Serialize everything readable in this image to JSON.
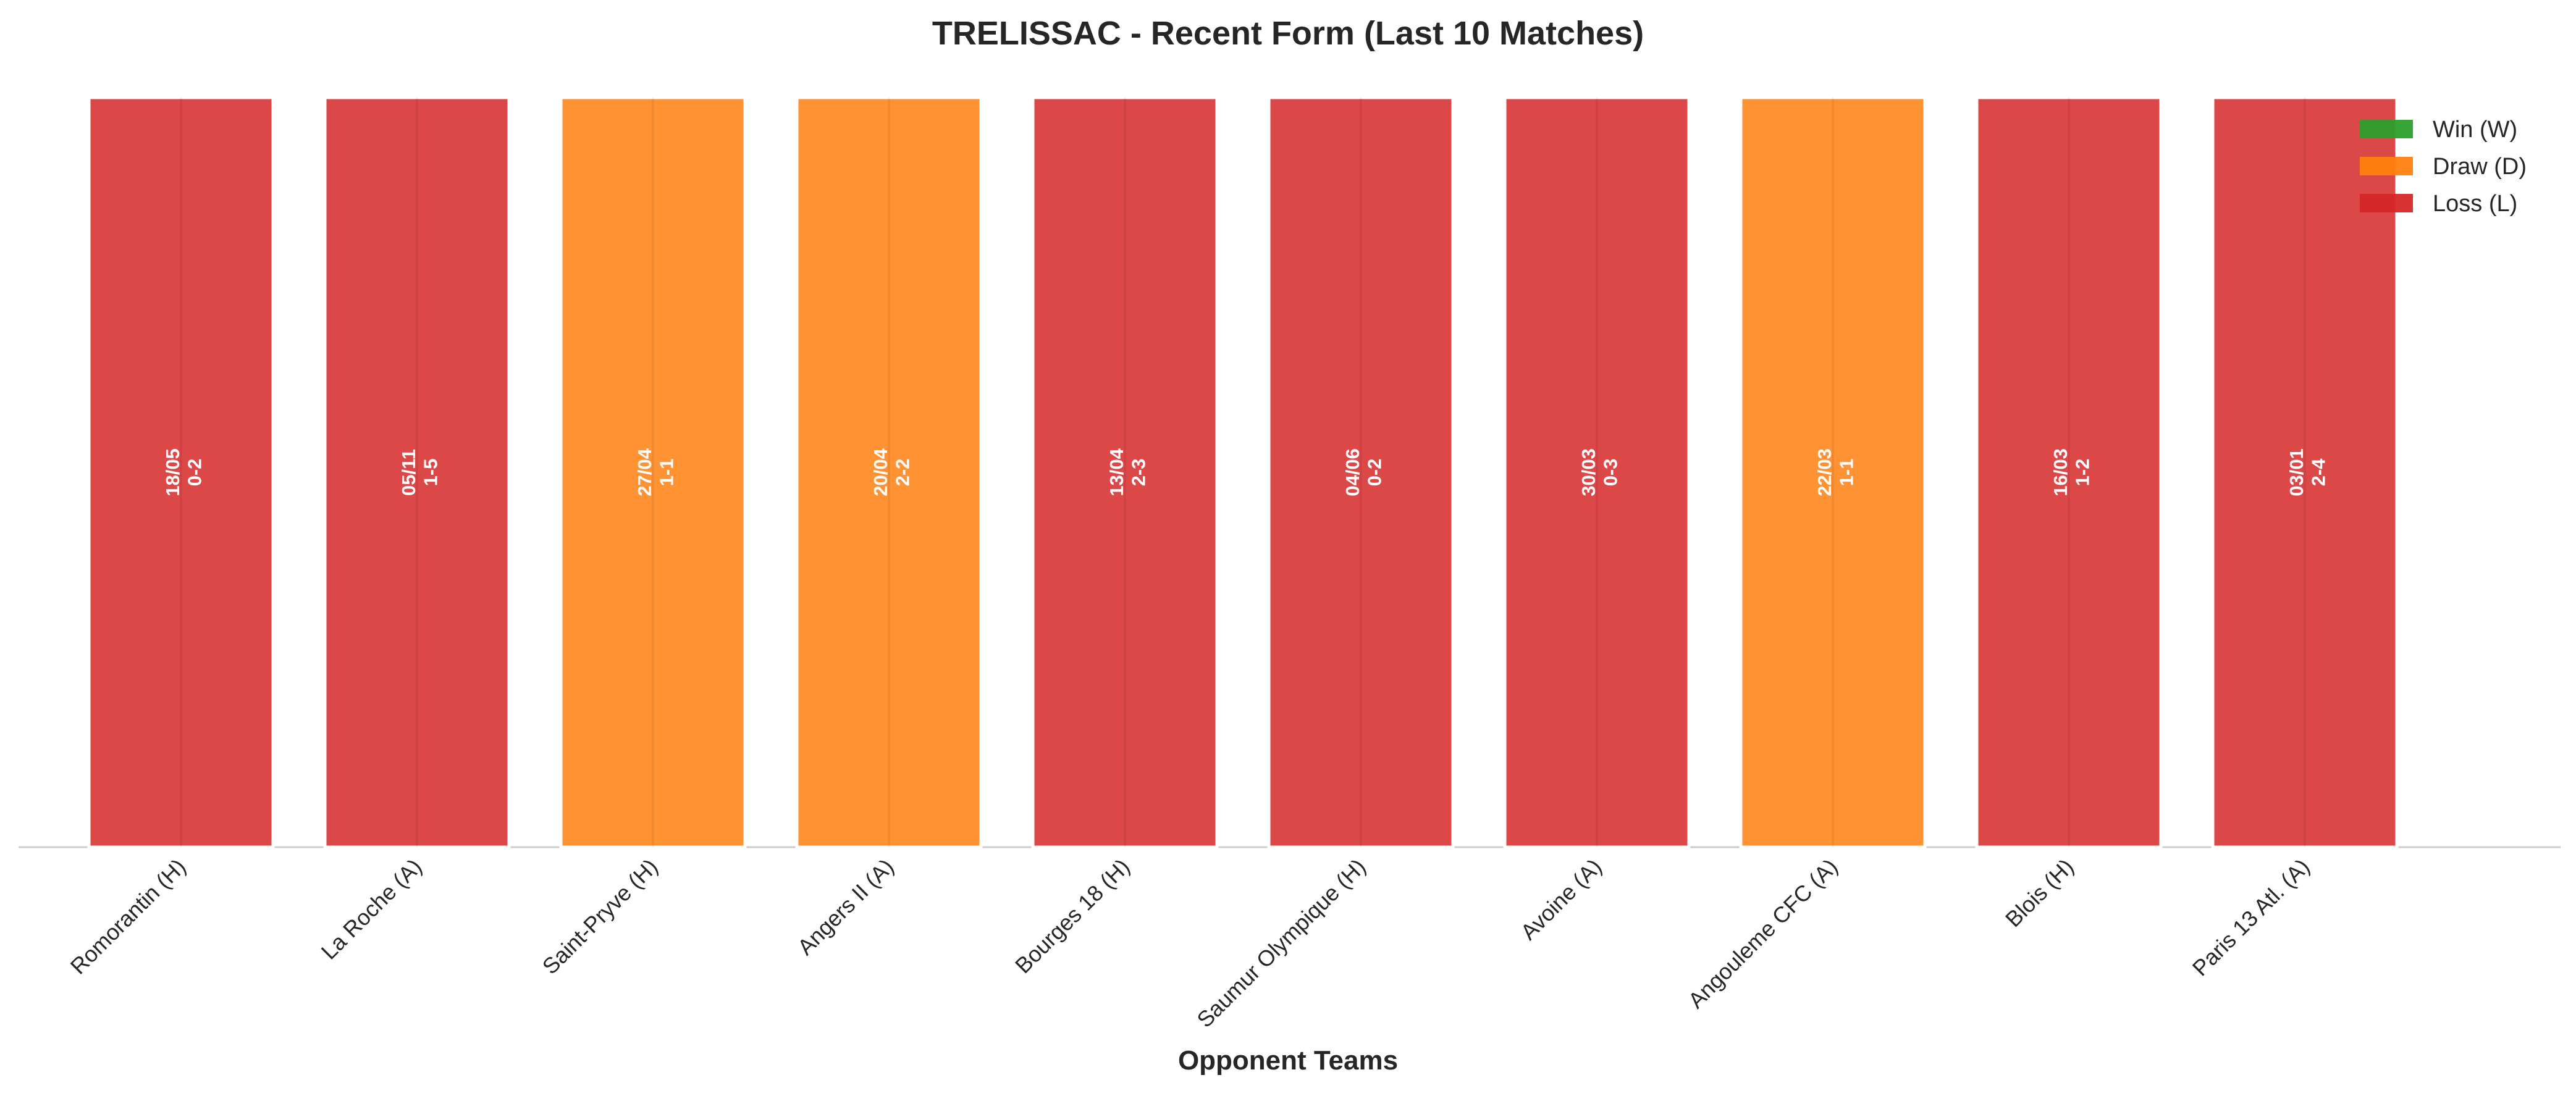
{
  "chart_data": {
    "type": "bar",
    "title": "TRELISSAC - Recent Form (Last 10 Matches)",
    "xlabel": "Opponent Teams",
    "ylabel": "",
    "ylim": [
      0,
      1
    ],
    "categories": [
      "Romorantin (H)",
      "La Roche (A)",
      "Saint-Pryve (H)",
      "Angers II (A)",
      "Bourges 18 (H)",
      "Saumur Olympique (H)",
      "Avoine (A)",
      "Angouleme CFC (A)",
      "Blois (H)",
      "Paris 13 Atl. (A)"
    ],
    "values": [
      1,
      1,
      1,
      1,
      1,
      1,
      1,
      1,
      1,
      1
    ],
    "results": [
      "L",
      "L",
      "D",
      "D",
      "L",
      "L",
      "L",
      "D",
      "L",
      "L"
    ],
    "dates": [
      "18/05",
      "05/11",
      "27/04",
      "20/04",
      "13/04",
      "04/06",
      "30/03",
      "22/03",
      "16/03",
      "03/01"
    ],
    "scores": [
      "0-2",
      "1-5",
      "1-1",
      "2-2",
      "2-3",
      "0-2",
      "0-3",
      "1-1",
      "1-2",
      "2-4"
    ],
    "legend": {
      "position": "top-right",
      "entries": [
        {
          "key": "W",
          "label": "Win (W)",
          "color": "#2ca02c"
        },
        {
          "key": "D",
          "label": "Draw (D)",
          "color": "#ff7f0e"
        },
        {
          "key": "L",
          "label": "Loss (L)",
          "color": "#d62728"
        }
      ]
    },
    "grid": false
  }
}
